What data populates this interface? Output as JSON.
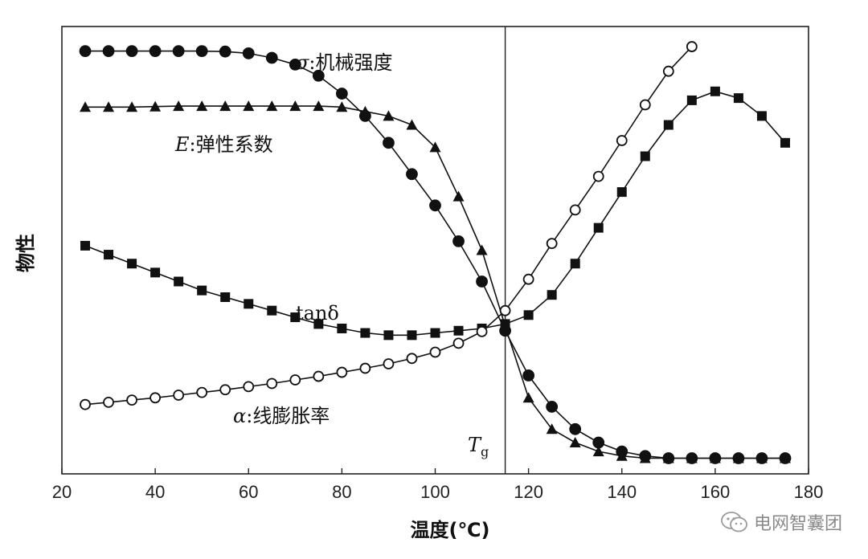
{
  "chart_data": {
    "type": "line",
    "xlabel": "温度(℃)",
    "ylabel": "物性",
    "xlim": [
      20,
      180
    ],
    "xticks": [
      20,
      40,
      60,
      80,
      100,
      120,
      140,
      160,
      180
    ],
    "tg": {
      "x": 115,
      "label": "T",
      "subscript": "g"
    },
    "series": [
      {
        "id": "sigma",
        "symbol": "σ",
        "name": "机械强度",
        "marker": "filled-circle",
        "x": [
          25,
          30,
          35,
          40,
          45,
          50,
          55,
          60,
          65,
          70,
          75,
          80,
          85,
          90,
          95,
          100,
          105,
          110,
          115,
          120,
          125,
          130,
          135,
          140,
          145,
          150,
          155,
          160,
          165,
          170,
          175
        ],
        "y": [
          0.945,
          0.945,
          0.945,
          0.945,
          0.945,
          0.945,
          0.944,
          0.94,
          0.93,
          0.915,
          0.89,
          0.85,
          0.8,
          0.74,
          0.67,
          0.6,
          0.52,
          0.43,
          0.32,
          0.22,
          0.15,
          0.1,
          0.07,
          0.05,
          0.04,
          0.035,
          0.035,
          0.035,
          0.035,
          0.035,
          0.035
        ]
      },
      {
        "id": "E",
        "symbol": "E",
        "name": "弹性系数",
        "marker": "filled-triangle",
        "x": [
          25,
          30,
          35,
          40,
          45,
          50,
          55,
          60,
          65,
          70,
          75,
          80,
          85,
          90,
          95,
          100,
          105,
          110,
          115,
          120,
          125,
          130,
          135,
          140,
          145,
          150,
          155,
          160,
          165,
          170,
          175
        ],
        "y": [
          0.82,
          0.82,
          0.82,
          0.821,
          0.822,
          0.822,
          0.822,
          0.822,
          0.822,
          0.822,
          0.822,
          0.82,
          0.81,
          0.8,
          0.78,
          0.73,
          0.62,
          0.5,
          0.33,
          0.17,
          0.1,
          0.07,
          0.05,
          0.04,
          0.035,
          0.035,
          0.035,
          0.035,
          0.035,
          0.035,
          0.035
        ]
      },
      {
        "id": "tan",
        "symbol": "tanδ",
        "name": "",
        "marker": "filled-square",
        "x": [
          25,
          30,
          35,
          40,
          45,
          50,
          55,
          60,
          65,
          70,
          75,
          80,
          85,
          90,
          95,
          100,
          105,
          110,
          115,
          120,
          125,
          130,
          135,
          140,
          145,
          150,
          155,
          160,
          165,
          170,
          175
        ],
        "y": [
          0.51,
          0.49,
          0.47,
          0.45,
          0.43,
          0.41,
          0.395,
          0.38,
          0.365,
          0.35,
          0.335,
          0.325,
          0.315,
          0.31,
          0.31,
          0.315,
          0.32,
          0.325,
          0.335,
          0.355,
          0.4,
          0.47,
          0.55,
          0.63,
          0.71,
          0.78,
          0.835,
          0.855,
          0.84,
          0.8,
          0.74
        ]
      },
      {
        "id": "alpha",
        "symbol": "α",
        "name": "线膨胀率",
        "marker": "open-circle",
        "x": [
          25,
          30,
          35,
          40,
          45,
          50,
          55,
          60,
          65,
          70,
          75,
          80,
          85,
          90,
          95,
          100,
          105,
          110,
          115,
          120,
          125,
          130,
          135,
          140,
          145,
          150,
          155
        ],
        "y": [
          0.155,
          0.16,
          0.165,
          0.17,
          0.176,
          0.182,
          0.188,
          0.195,
          0.202,
          0.21,
          0.218,
          0.227,
          0.236,
          0.246,
          0.258,
          0.272,
          0.292,
          0.318,
          0.365,
          0.435,
          0.515,
          0.59,
          0.665,
          0.745,
          0.825,
          0.9,
          0.955
        ]
      }
    ]
  },
  "labels": {
    "sigma": {
      "symbol": "σ",
      "sep": ":",
      "text": "机械强度"
    },
    "E": {
      "symbol": "E",
      "sep": ":",
      "text": "弹性系数"
    },
    "tan": {
      "text": "tanδ"
    },
    "alpha": {
      "symbol": "α",
      "sep": ":",
      "text": "线膨胀率"
    }
  },
  "watermark": {
    "text": "电网智囊团",
    "icon": "wechat-icon"
  }
}
